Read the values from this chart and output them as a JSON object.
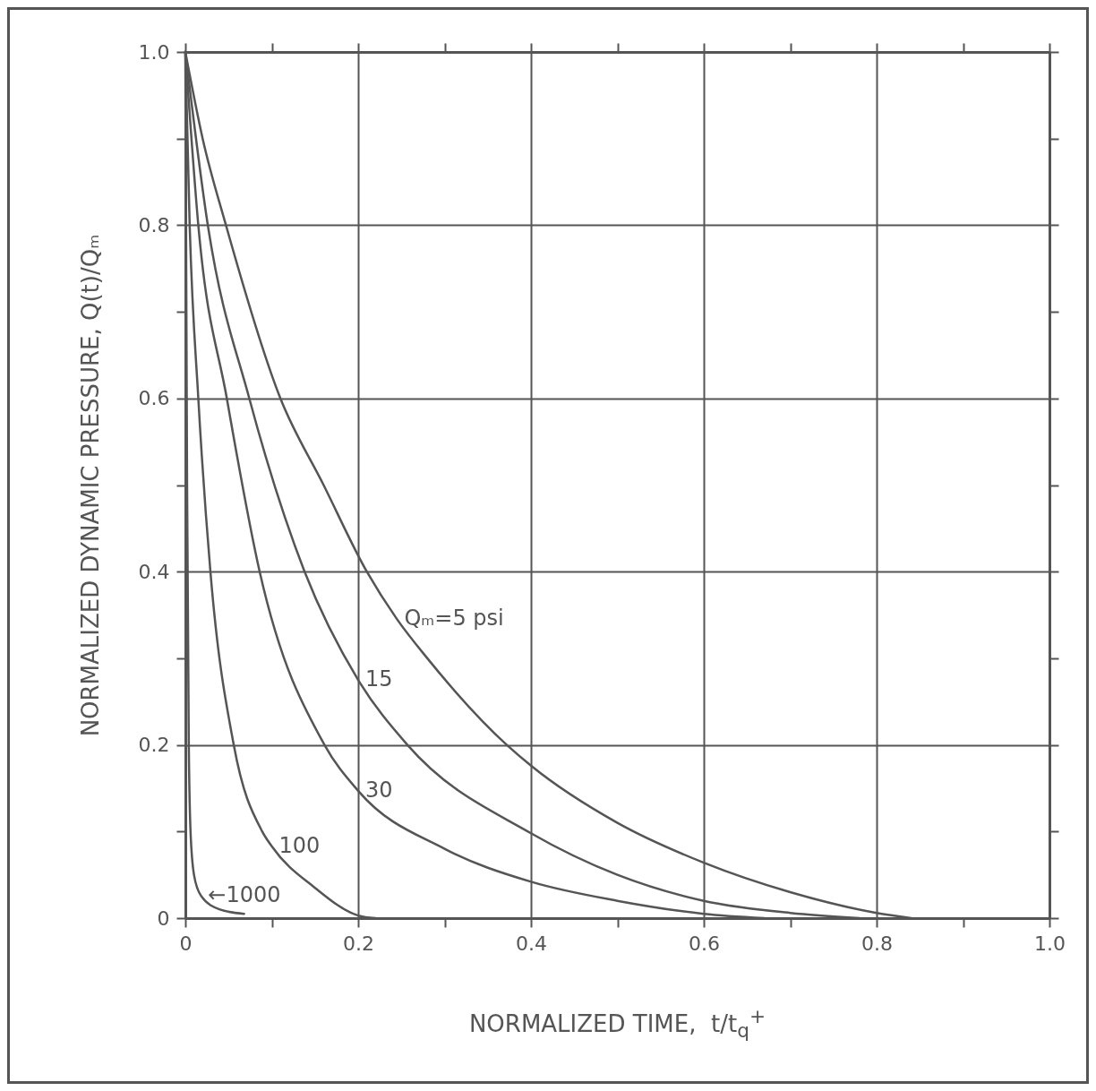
{
  "chart_data": {
    "type": "line",
    "xlabel": "NORMALIZED TIME,  t/t$_{q}$$^{+}$",
    "ylabel": "NORMALIZED  DYNAMIC  PRESSURE,  Q(t)/Qₘ",
    "xlim": [
      0,
      1
    ],
    "ylim": [
      0,
      1
    ],
    "xticks": [
      0,
      {
        "value": 0.1,
        "label": null
      },
      0.2,
      {
        "value": 0.3,
        "label": null
      },
      0.4,
      {
        "value": 0.5,
        "label": null
      },
      0.6,
      {
        "value": 0.7,
        "label": null
      },
      0.8,
      {
        "value": 0.9,
        "label": null
      },
      {
        "value": 1,
        "label": "1.0"
      }
    ],
    "yticks": [
      0,
      {
        "value": 0.1,
        "label": null
      },
      0.2,
      {
        "value": 0.3,
        "label": null
      },
      0.4,
      {
        "value": 0.5,
        "label": null
      },
      0.6,
      {
        "value": 0.7,
        "label": null
      },
      0.8,
      {
        "value": 0.9,
        "label": null
      },
      {
        "value": 1,
        "label": "1.0"
      }
    ],
    "grid": true,
    "line_style": "solid",
    "series": [
      {
        "color": "#555555",
        "x": [
          0,
          0.02,
          0.047,
          0.11,
          0.16,
          0.21,
          0.245,
          0.28,
          0.372,
          0.4,
          0.5,
          0.6,
          0.7,
          0.8,
          0.84
        ],
        "values": [
          1,
          0.9,
          0.8,
          0.6,
          0.5,
          0.4,
          0.345,
          0.3,
          0.2,
          0.176,
          0.11,
          0.064,
          0.03,
          0.006,
          0
        ]
      },
      {
        "color": "#555555",
        "x": [
          0,
          0.026,
          0.074,
          0.138,
          0.2,
          0.257,
          0.4,
          0.5,
          0.6,
          0.7,
          0.78
        ],
        "values": [
          1,
          0.8,
          0.6,
          0.4,
          0.275,
          0.2,
          0.098,
          0.05,
          0.02,
          0.006,
          0
        ]
      },
      {
        "color": "#555555",
        "x": [
          0,
          0.015,
          0.048,
          0.086,
          0.161,
          0.2,
          0.3,
          0.4,
          0.5,
          0.6,
          0.67
        ],
        "values": [
          1,
          0.8,
          0.6,
          0.4,
          0.2,
          0.147,
          0.08,
          0.042,
          0.02,
          0.005,
          0
        ]
      },
      {
        "color": "#555555",
        "x": [
          0,
          0.005,
          0.015,
          0.029,
          0.056,
          0.089,
          0.1,
          0.15,
          0.2,
          0.22
        ],
        "values": [
          1,
          0.8,
          0.6,
          0.4,
          0.2,
          0.1,
          0.083,
          0.035,
          0.003,
          0
        ]
      },
      {
        "color": "#555555",
        "x": [
          0,
          0.002,
          0.004,
          0.006,
          0.01,
          0.018,
          0.04,
          0.068
        ],
        "values": [
          1,
          0.5,
          0.2,
          0.1,
          0.05,
          0.026,
          0.01,
          0.005
        ]
      }
    ],
    "annotations": [
      {
        "text": "Qₘ=5 psi",
        "x": 0.245,
        "y": 0.345
      },
      {
        "text": "15",
        "x": 0.2,
        "y": 0.275
      },
      {
        "text": "30",
        "x": 0.2,
        "y": 0.147
      },
      {
        "text": "100",
        "x": 0.1,
        "y": 0.083
      },
      {
        "text": "←1000",
        "x": 0.018,
        "y": 0.026
      }
    ]
  }
}
